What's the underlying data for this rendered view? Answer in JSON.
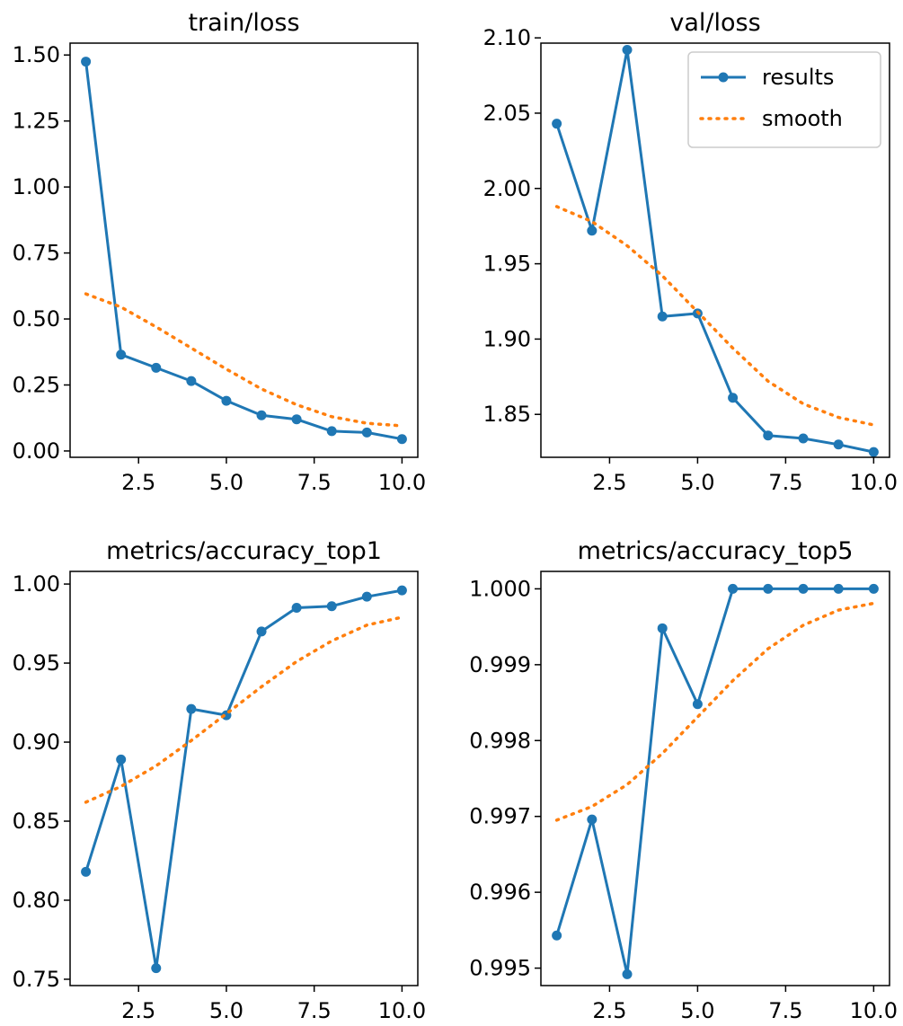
{
  "colors": {
    "results": "#1f77b4",
    "smooth": "#ff7f0e",
    "axis": "#000000",
    "background": "#ffffff"
  },
  "chart_data": [
    {
      "type": "line",
      "title": "train/loss",
      "xlabel": "",
      "ylabel": "",
      "xlim": [
        0.55,
        10.45
      ],
      "ylim": [
        -0.024,
        1.545
      ],
      "xticks": [
        2.5,
        5.0,
        7.5,
        10.0
      ],
      "xtick_labels": [
        "2.5",
        "5.0",
        "7.5",
        "10.0"
      ],
      "yticks": [
        0.0,
        0.25,
        0.5,
        0.75,
        1.0,
        1.25,
        1.5
      ],
      "ytick_labels": [
        "0.00",
        "0.25",
        "0.50",
        "0.75",
        "1.00",
        "1.25",
        "1.50"
      ],
      "x": [
        1,
        2,
        3,
        4,
        5,
        6,
        7,
        8,
        9,
        10
      ],
      "series": [
        {
          "name": "results",
          "style": "line-marker",
          "values": [
            1.475,
            0.365,
            0.315,
            0.265,
            0.19,
            0.135,
            0.12,
            0.075,
            0.07,
            0.045
          ]
        },
        {
          "name": "smooth",
          "style": "dotted",
          "values": [
            0.595,
            0.545,
            0.47,
            0.39,
            0.31,
            0.235,
            0.175,
            0.13,
            0.105,
            0.095
          ]
        }
      ],
      "legend": null
    },
    {
      "type": "line",
      "title": "val/loss",
      "xlabel": "",
      "ylabel": "",
      "xlim": [
        0.55,
        10.45
      ],
      "ylim": [
        1.8215,
        2.0965
      ],
      "xticks": [
        2.5,
        5.0,
        7.5,
        10.0
      ],
      "xtick_labels": [
        "2.5",
        "5.0",
        "7.5",
        "10.0"
      ],
      "yticks": [
        1.85,
        1.9,
        1.95,
        2.0,
        2.05,
        2.1
      ],
      "ytick_labels": [
        "1.85",
        "1.90",
        "1.95",
        "2.00",
        "2.05",
        "2.10"
      ],
      "x": [
        1,
        2,
        3,
        4,
        5,
        6,
        7,
        8,
        9,
        10
      ],
      "series": [
        {
          "name": "results",
          "style": "line-marker",
          "values": [
            2.043,
            1.972,
            2.092,
            1.915,
            1.917,
            1.861,
            1.836,
            1.834,
            1.83,
            1.825
          ]
        },
        {
          "name": "smooth",
          "style": "dotted",
          "values": [
            1.988,
            1.978,
            1.962,
            1.942,
            1.918,
            1.894,
            1.872,
            1.857,
            1.848,
            1.843
          ]
        }
      ],
      "legend": {
        "location": "top-right",
        "entries": [
          "results",
          "smooth"
        ]
      }
    },
    {
      "type": "line",
      "title": "metrics/accuracy_top1",
      "xlabel": "",
      "ylabel": "",
      "xlim": [
        0.55,
        10.45
      ],
      "ylim": [
        0.746,
        1.008
      ],
      "xticks": [
        2.5,
        5.0,
        7.5,
        10.0
      ],
      "xtick_labels": [
        "2.5",
        "5.0",
        "7.5",
        "10.0"
      ],
      "yticks": [
        0.75,
        0.8,
        0.85,
        0.9,
        0.95,
        1.0
      ],
      "ytick_labels": [
        "0.75",
        "0.80",
        "0.85",
        "0.90",
        "0.95",
        "1.00"
      ],
      "x": [
        1,
        2,
        3,
        4,
        5,
        6,
        7,
        8,
        9,
        10
      ],
      "series": [
        {
          "name": "results",
          "style": "line-marker",
          "values": [
            0.818,
            0.889,
            0.757,
            0.921,
            0.917,
            0.97,
            0.985,
            0.986,
            0.992,
            0.996
          ]
        },
        {
          "name": "smooth",
          "style": "dotted",
          "values": [
            0.862,
            0.872,
            0.885,
            0.901,
            0.918,
            0.935,
            0.951,
            0.964,
            0.974,
            0.979
          ]
        }
      ],
      "legend": null
    },
    {
      "type": "line",
      "title": "metrics/accuracy_top5",
      "xlabel": "",
      "ylabel": "",
      "xlim": [
        0.55,
        10.45
      ],
      "ylim": [
        0.99477,
        1.00023
      ],
      "xticks": [
        2.5,
        5.0,
        7.5,
        10.0
      ],
      "xtick_labels": [
        "2.5",
        "5.0",
        "7.5",
        "10.0"
      ],
      "yticks": [
        0.995,
        0.996,
        0.997,
        0.998,
        0.999,
        1.0
      ],
      "ytick_labels": [
        "0.995",
        "0.996",
        "0.997",
        "0.998",
        "0.999",
        "1.000"
      ],
      "x": [
        1,
        2,
        3,
        4,
        5,
        6,
        7,
        8,
        9,
        10
      ],
      "series": [
        {
          "name": "results",
          "style": "line-marker",
          "values": [
            0.99543,
            0.99696,
            0.99492,
            0.99948,
            0.99848,
            1.0,
            1.0,
            1.0,
            1.0,
            1.0
          ]
        },
        {
          "name": "smooth",
          "style": "dotted",
          "values": [
            0.99695,
            0.99713,
            0.99742,
            0.99783,
            0.99831,
            0.99879,
            0.99921,
            0.99952,
            0.99972,
            0.99981
          ]
        }
      ],
      "legend": null
    }
  ]
}
